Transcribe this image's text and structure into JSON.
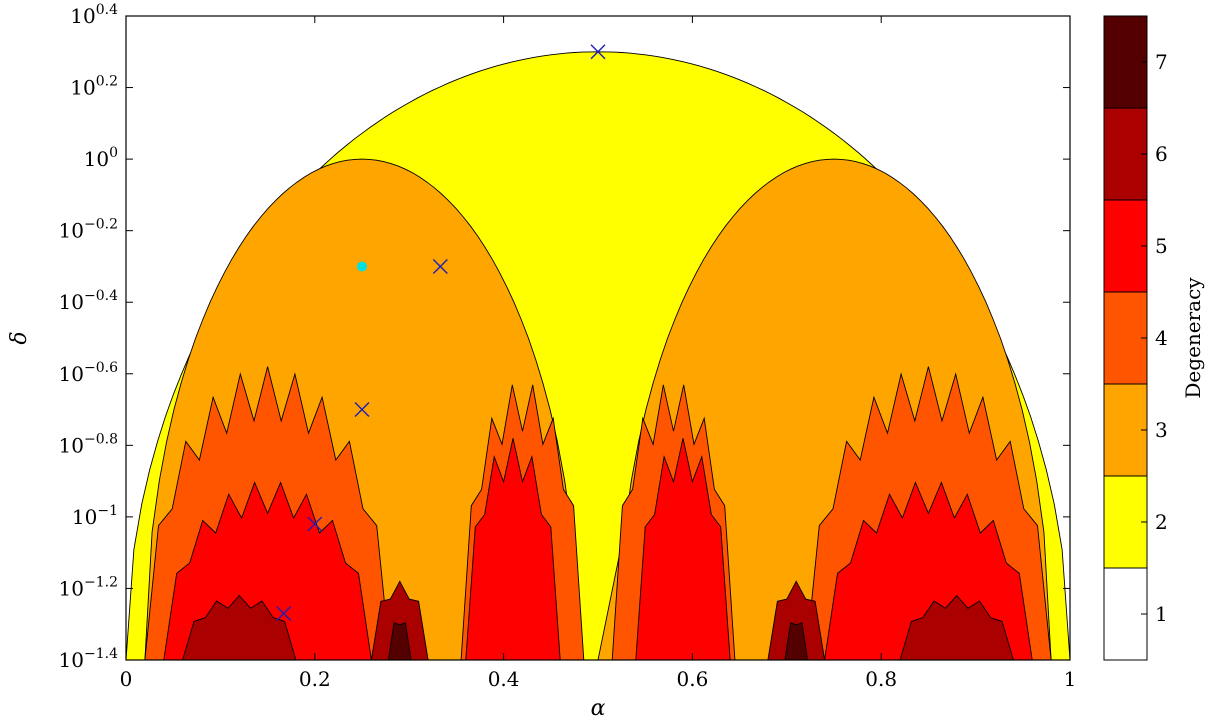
{
  "chart_data": {
    "type": "heatmap",
    "title": "",
    "xlabel": "α",
    "ylabel": "δ",
    "xlim": [
      0,
      1
    ],
    "ylim_log10": [
      -1.4,
      0.4
    ],
    "y_scale": "log10",
    "x_ticks": [
      {
        "value": 0,
        "label": "0"
      },
      {
        "value": 0.2,
        "label": "0.2"
      },
      {
        "value": 0.4,
        "label": "0.4"
      },
      {
        "value": 0.6,
        "label": "0.6"
      },
      {
        "value": 0.8,
        "label": "0.8"
      },
      {
        "value": 1,
        "label": "1"
      }
    ],
    "y_ticks": [
      {
        "exp": 0.4,
        "base": "10",
        "sup": "0.4"
      },
      {
        "exp": 0.2,
        "base": "10",
        "sup": "0.2"
      },
      {
        "exp": 0.0,
        "base": "10",
        "sup": "0"
      },
      {
        "exp": -0.2,
        "base": "10",
        "sup": "−0.2"
      },
      {
        "exp": -0.4,
        "base": "10",
        "sup": "−0.4"
      },
      {
        "exp": -0.6,
        "base": "10",
        "sup": "−0.6"
      },
      {
        "exp": -0.8,
        "base": "10",
        "sup": "−0.8"
      },
      {
        "exp": -1.0,
        "base": "10",
        "sup": "−1"
      },
      {
        "exp": -1.2,
        "base": "10",
        "sup": "−1.2"
      },
      {
        "exp": -1.4,
        "base": "10",
        "sup": "−1.4"
      }
    ],
    "colorbar": {
      "title": "Degeneracy",
      "levels": [
        {
          "value": 1,
          "label": "1",
          "color": "#ffffff"
        },
        {
          "value": 2,
          "label": "2",
          "color": "#ffff00"
        },
        {
          "value": 3,
          "label": "3",
          "color": "#ffa500"
        },
        {
          "value": 4,
          "label": "4",
          "color": "#ff5500"
        },
        {
          "value": 5,
          "label": "5",
          "color": "#ff0000"
        },
        {
          "value": 6,
          "label": "6",
          "color": "#aa0000"
        },
        {
          "value": 7,
          "label": "7",
          "color": "#550000"
        }
      ]
    },
    "markers": [
      {
        "shape": "x",
        "color": "#1f1fb4",
        "alpha": 0.5,
        "log10_delta": 0.3
      },
      {
        "shape": "x",
        "color": "#1f1fb4",
        "alpha": 0.333,
        "log10_delta": -0.3
      },
      {
        "shape": "x",
        "color": "#1f1fb4",
        "alpha": 0.25,
        "log10_delta": -0.7
      },
      {
        "shape": "x",
        "color": "#1f1fb4",
        "alpha": 0.2,
        "log10_delta": -1.02
      },
      {
        "shape": "x",
        "color": "#1f1fb4",
        "alpha": 0.167,
        "log10_delta": -1.27
      },
      {
        "shape": "dot",
        "color": "#00e0e0",
        "alpha": 0.25,
        "log10_delta": -0.3
      }
    ]
  }
}
